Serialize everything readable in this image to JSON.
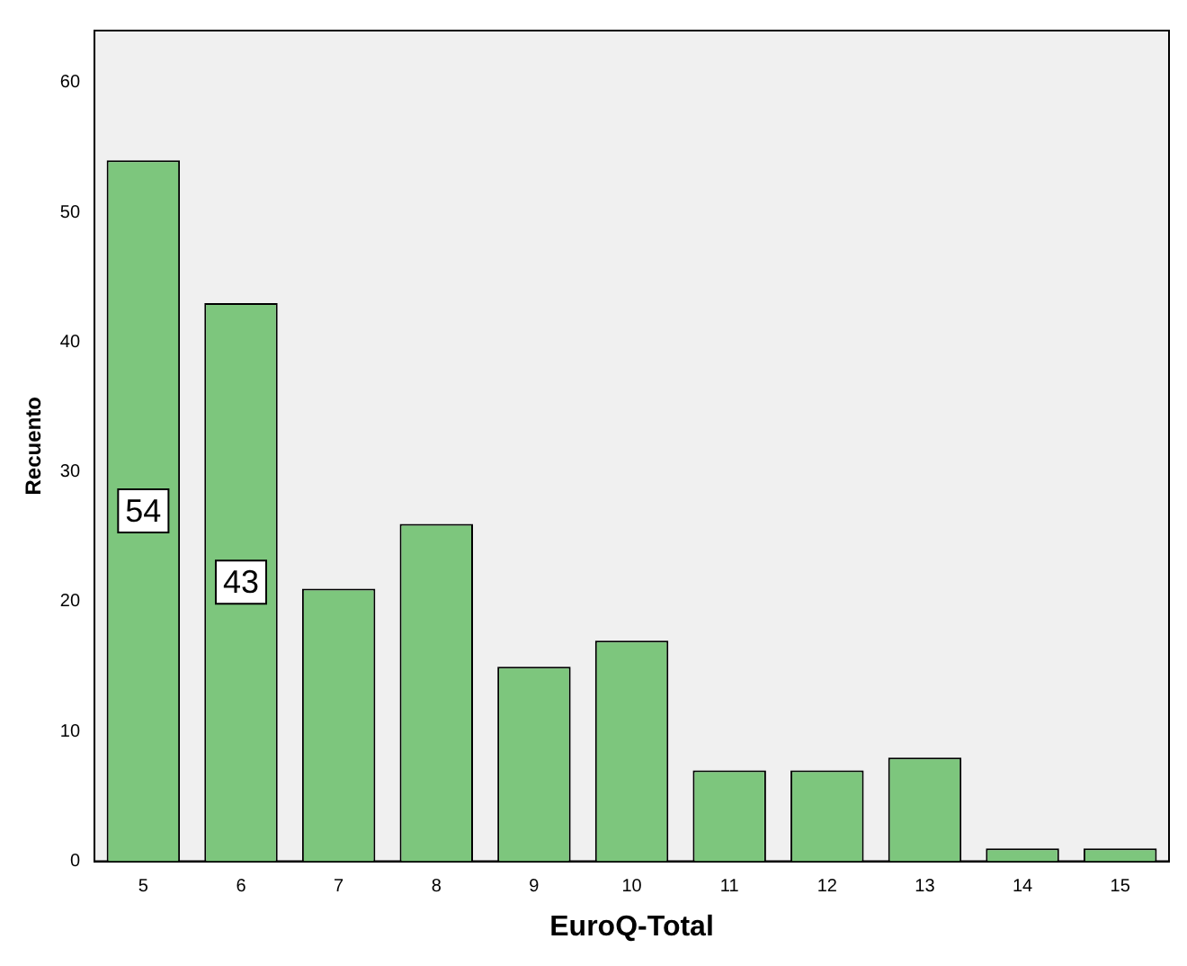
{
  "chart_data": {
    "type": "bar",
    "xlabel": "EuroQ-Total",
    "ylabel": "Recuento",
    "categories": [
      "5",
      "6",
      "7",
      "8",
      "9",
      "10",
      "11",
      "12",
      "13",
      "14",
      "15"
    ],
    "values": [
      54,
      43,
      21,
      26,
      15,
      17,
      7,
      7,
      8,
      1,
      1
    ],
    "value_labels": [
      "54",
      "43",
      null,
      null,
      null,
      null,
      null,
      null,
      null,
      null,
      null
    ],
    "color": "#7dc67d",
    "ylim": [
      0,
      64
    ],
    "yticks": [
      0,
      10,
      20,
      30,
      40,
      50,
      60
    ],
    "grid": false,
    "legend": false
  }
}
